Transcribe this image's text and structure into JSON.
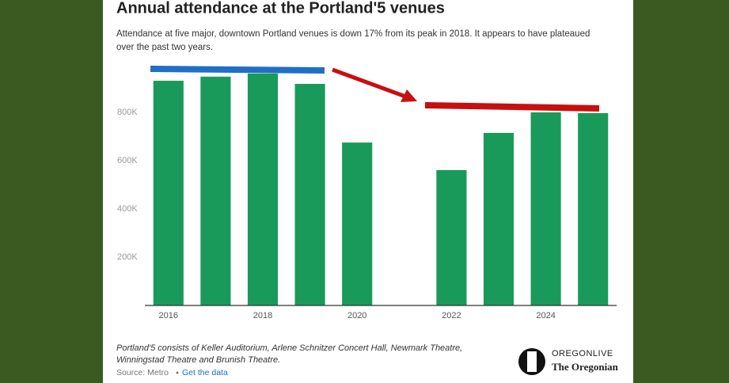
{
  "chart_data": {
    "type": "bar",
    "title": "Annual attendance at the Portland'5 venues",
    "subtitle": [
      "Attendance at five major, downtown Portland venues is down 17% from its peak in 2018. It appears to have plateaued",
      "over the past two years."
    ],
    "x": [
      2016,
      2017,
      2018,
      2019,
      2020,
      2021,
      2022,
      2023,
      2024,
      2025
    ],
    "values": [
      931000,
      948000,
      961000,
      918000,
      675000,
      null,
      561000,
      715000,
      800000,
      797000
    ],
    "color": "#1a9a5a",
    "xlim": [
      2015.5,
      2025.5
    ],
    "xticks": [
      2016,
      2018,
      2020,
      2022,
      2024
    ],
    "ylim": [
      0,
      1000000
    ],
    "yticks": [
      {
        "value": 200000,
        "label": "200K"
      },
      {
        "value": 400000,
        "label": "400K"
      },
      {
        "value": 600000,
        "label": "600K"
      },
      {
        "value": 800000,
        "label": "800K"
      }
    ],
    "grid": false,
    "note": [
      "Portland'5 consists of Keller Auditorium, Arlene Schnitzer Concert Hall, Newmark Theatre,",
      "Winningstad Theatre and Brunish Theatre."
    ],
    "source": "Source: Metro",
    "link": "Get the data",
    "logo": [
      "OREGONLIVE",
      "The Oregonian"
    ]
  }
}
